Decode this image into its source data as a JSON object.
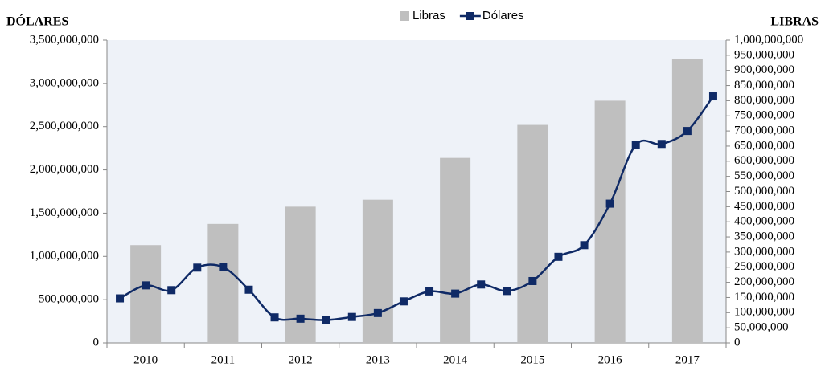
{
  "chart_data": {
    "type": "bar-line",
    "y_title": "DÓLARES",
    "y2_title": "LIBRAS",
    "categories": [
      null,
      "2010",
      null,
      null,
      "2011",
      null,
      null,
      "2012",
      null,
      null,
      "2013",
      null,
      null,
      "2014",
      null,
      null,
      "2015",
      null,
      null,
      "2016",
      null,
      null,
      "2017",
      null
    ],
    "series": [
      {
        "name": "Libras",
        "type": "bar",
        "axis": "y2",
        "color": "#bfbfbf",
        "values": [
          null,
          323000000,
          null,
          null,
          393000000,
          null,
          null,
          450000000,
          null,
          null,
          473000000,
          null,
          null,
          611000000,
          null,
          null,
          720000000,
          null,
          null,
          800000000,
          null,
          null,
          937000000,
          null
        ]
      },
      {
        "name": "Dólares",
        "type": "line",
        "color": "#0f2a66",
        "values": [
          515000000,
          665000000,
          610000000,
          870000000,
          875000000,
          615000000,
          295000000,
          280000000,
          265000000,
          300000000,
          345000000,
          480000000,
          595000000,
          570000000,
          675000000,
          600000000,
          715000000,
          995000000,
          1130000000,
          1610000000,
          2290000000,
          2300000000,
          2450000000,
          2850000000
        ]
      }
    ],
    "ylim": [
      0,
      3500000000
    ],
    "yticks": [
      0,
      {
        "value": 500000000,
        "label": "500,000,000"
      },
      {
        "value": 1000000000,
        "label": "1,000,000,000"
      },
      {
        "value": 1500000000,
        "label": "1,500,000,000"
      },
      {
        "value": 2000000000,
        "label": "2,000,000,000"
      },
      {
        "value": 2500000000,
        "label": "2,500,000,000"
      },
      {
        "value": 3000000000,
        "label": "3,000,000,000"
      },
      {
        "value": 3500000000,
        "label": "3,500,000,000"
      }
    ],
    "y2lim": [
      0,
      1000000000
    ],
    "y2ticks": [
      0,
      {
        "value": 50000000,
        "label": "50,000,000"
      },
      {
        "value": 100000000,
        "label": "100,000,000"
      },
      {
        "value": 150000000,
        "label": "150,000,000"
      },
      {
        "value": 200000000,
        "label": "200,000,000"
      },
      {
        "value": 250000000,
        "label": "250,000,000"
      },
      {
        "value": 300000000,
        "label": "300,000,000"
      },
      {
        "value": 350000000,
        "label": "350,000,000"
      },
      {
        "value": 400000000,
        "label": "400,000,000"
      },
      {
        "value": 450000000,
        "label": "450,000,000"
      },
      {
        "value": 500000000,
        "label": "500,000,000"
      },
      {
        "value": 550000000,
        "label": "550,000,000"
      },
      {
        "value": 600000000,
        "label": "600,000,000"
      },
      {
        "value": 650000000,
        "label": "650,000,000"
      },
      {
        "value": 700000000,
        "label": "700,000,000"
      },
      {
        "value": 750000000,
        "label": "750,000,000"
      },
      {
        "value": 800000000,
        "label": "800,000,000"
      },
      {
        "value": 850000000,
        "label": "850,000,000"
      },
      {
        "value": 900000000,
        "label": "900,000,000"
      },
      {
        "value": 950000000,
        "label": "950,000,000"
      },
      {
        "value": 1000000000,
        "label": "1,000,000,000"
      }
    ]
  }
}
